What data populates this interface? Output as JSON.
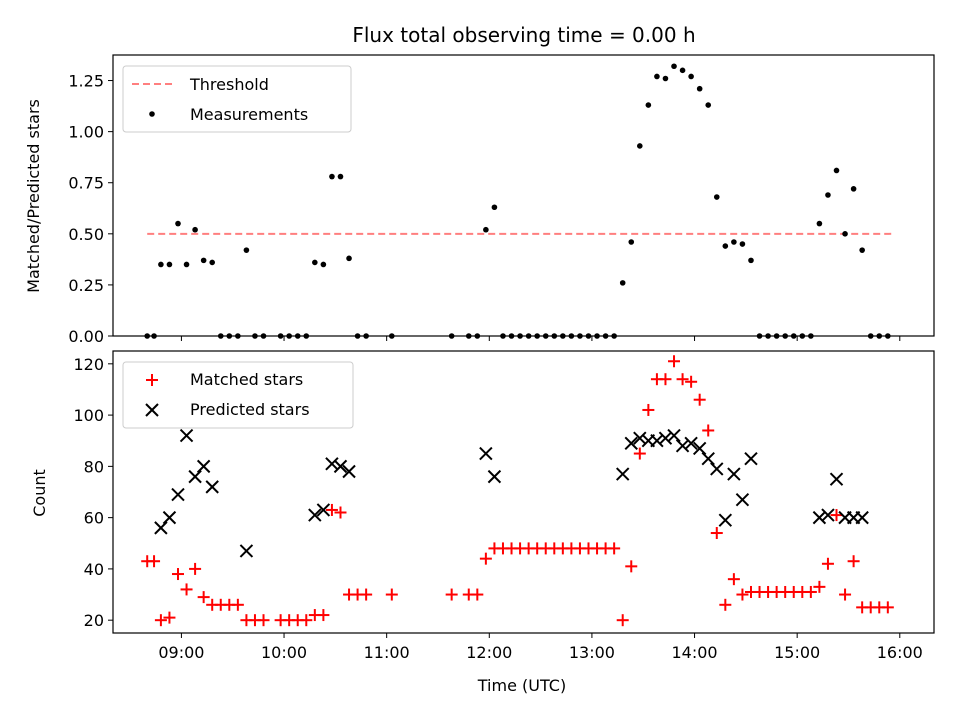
{
  "chart_data": [
    {
      "type": "scatter",
      "title": "Flux total observing time = 0.00 h",
      "xlabel": "",
      "ylabel": "Matched/Predicted stars",
      "xlim": [
        "08:20",
        "16:20"
      ],
      "ylim": [
        0,
        1.375
      ],
      "yticks": [
        "0.00",
        "0.25",
        "0.50",
        "0.75",
        "1.00",
        "1.25"
      ],
      "legend_position": "upper-left",
      "threshold": {
        "name": "Threshold",
        "value": 0.5,
        "x_start": "08:40",
        "x_end": "15:55",
        "color": "#ff7f7f"
      },
      "series": [
        {
          "name": "Measurements",
          "marker": "dot",
          "color": "#000000",
          "points": [
            [
              "08:40",
              0
            ],
            [
              "08:44",
              0
            ],
            [
              "08:48",
              0.35
            ],
            [
              "08:53",
              0.35
            ],
            [
              "08:58",
              0.55
            ],
            [
              "09:03",
              0.35
            ],
            [
              "09:08",
              0.52
            ],
            [
              "09:13",
              0.37
            ],
            [
              "09:18",
              0.36
            ],
            [
              "09:23",
              0
            ],
            [
              "09:28",
              0
            ],
            [
              "09:33",
              0
            ],
            [
              "09:38",
              0.42
            ],
            [
              "09:43",
              0
            ],
            [
              "09:48",
              0
            ],
            [
              "09:58",
              0
            ],
            [
              "10:03",
              0
            ],
            [
              "10:08",
              0
            ],
            [
              "10:13",
              0
            ],
            [
              "10:18",
              0.36
            ],
            [
              "10:23",
              0.35
            ],
            [
              "10:28",
              0.78
            ],
            [
              "10:33",
              0.78
            ],
            [
              "10:38",
              0.38
            ],
            [
              "10:43",
              0
            ],
            [
              "10:48",
              0
            ],
            [
              "11:03",
              0
            ],
            [
              "11:38",
              0
            ],
            [
              "11:48",
              0
            ],
            [
              "11:53",
              0
            ],
            [
              "11:58",
              0.52
            ],
            [
              "12:03",
              0.63
            ],
            [
              "12:08",
              0
            ],
            [
              "12:13",
              0
            ],
            [
              "12:18",
              0
            ],
            [
              "12:23",
              0
            ],
            [
              "12:28",
              0
            ],
            [
              "12:33",
              0
            ],
            [
              "12:38",
              0
            ],
            [
              "12:43",
              0
            ],
            [
              "12:48",
              0
            ],
            [
              "12:53",
              0
            ],
            [
              "12:58",
              0
            ],
            [
              "13:03",
              0
            ],
            [
              "13:08",
              0
            ],
            [
              "13:13",
              0
            ],
            [
              "13:18",
              0.26
            ],
            [
              "13:23",
              0.46
            ],
            [
              "13:28",
              0.93
            ],
            [
              "13:33",
              1.13
            ],
            [
              "13:38",
              1.27
            ],
            [
              "13:43",
              1.26
            ],
            [
              "13:48",
              1.32
            ],
            [
              "13:53",
              1.3
            ],
            [
              "13:58",
              1.27
            ],
            [
              "14:03",
              1.21
            ],
            [
              "14:08",
              1.13
            ],
            [
              "14:13",
              0.68
            ],
            [
              "14:18",
              0.44
            ],
            [
              "14:23",
              0.46
            ],
            [
              "14:28",
              0.45
            ],
            [
              "14:33",
              0.37
            ],
            [
              "14:38",
              0
            ],
            [
              "14:43",
              0
            ],
            [
              "14:48",
              0
            ],
            [
              "14:53",
              0
            ],
            [
              "14:58",
              0
            ],
            [
              "15:03",
              0
            ],
            [
              "15:08",
              0
            ],
            [
              "15:13",
              0.55
            ],
            [
              "15:18",
              0.69
            ],
            [
              "15:23",
              0.81
            ],
            [
              "15:28",
              0.5
            ],
            [
              "15:33",
              0.72
            ],
            [
              "15:38",
              0.42
            ],
            [
              "15:43",
              0
            ],
            [
              "15:48",
              0
            ],
            [
              "15:53",
              0
            ]
          ]
        }
      ]
    },
    {
      "type": "scatter",
      "title": "",
      "xlabel": "Time (UTC)",
      "ylabel": "Count",
      "xlim": [
        "08:20",
        "16:20"
      ],
      "ylim": [
        15,
        125
      ],
      "xticks": [
        "09:00",
        "10:00",
        "11:00",
        "12:00",
        "13:00",
        "14:00",
        "15:00",
        "16:00"
      ],
      "yticks": [
        "20",
        "40",
        "60",
        "80",
        "100",
        "120"
      ],
      "legend_position": "upper-left",
      "series": [
        {
          "name": "Matched stars",
          "marker": "plus",
          "color": "#ff0000",
          "points": [
            [
              "08:40",
              43
            ],
            [
              "08:44",
              43
            ],
            [
              "08:48",
              20
            ],
            [
              "08:53",
              21
            ],
            [
              "08:58",
              38
            ],
            [
              "09:03",
              32
            ],
            [
              "09:08",
              40
            ],
            [
              "09:13",
              29
            ],
            [
              "09:18",
              26
            ],
            [
              "09:23",
              26
            ],
            [
              "09:28",
              26
            ],
            [
              "09:33",
              26
            ],
            [
              "09:38",
              20
            ],
            [
              "09:43",
              20
            ],
            [
              "09:48",
              20
            ],
            [
              "09:58",
              20
            ],
            [
              "10:03",
              20
            ],
            [
              "10:08",
              20
            ],
            [
              "10:13",
              20
            ],
            [
              "10:18",
              22
            ],
            [
              "10:23",
              22
            ],
            [
              "10:28",
              63
            ],
            [
              "10:33",
              62
            ],
            [
              "10:38",
              30
            ],
            [
              "10:43",
              30
            ],
            [
              "10:48",
              30
            ],
            [
              "11:03",
              30
            ],
            [
              "11:38",
              30
            ],
            [
              "11:48",
              30
            ],
            [
              "11:53",
              30
            ],
            [
              "11:58",
              44
            ],
            [
              "12:03",
              48
            ],
            [
              "12:08",
              48
            ],
            [
              "12:13",
              48
            ],
            [
              "12:18",
              48
            ],
            [
              "12:23",
              48
            ],
            [
              "12:28",
              48
            ],
            [
              "12:33",
              48
            ],
            [
              "12:38",
              48
            ],
            [
              "12:43",
              48
            ],
            [
              "12:48",
              48
            ],
            [
              "12:53",
              48
            ],
            [
              "12:58",
              48
            ],
            [
              "13:03",
              48
            ],
            [
              "13:08",
              48
            ],
            [
              "13:13",
              48
            ],
            [
              "13:18",
              20
            ],
            [
              "13:23",
              41
            ],
            [
              "13:28",
              85
            ],
            [
              "13:33",
              102
            ],
            [
              "13:38",
              114
            ],
            [
              "13:43",
              114
            ],
            [
              "13:48",
              121
            ],
            [
              "13:53",
              114
            ],
            [
              "13:58",
              113
            ],
            [
              "14:03",
              106
            ],
            [
              "14:08",
              94
            ],
            [
              "14:13",
              54
            ],
            [
              "14:18",
              26
            ],
            [
              "14:23",
              36
            ],
            [
              "14:28",
              30
            ],
            [
              "14:33",
              31
            ],
            [
              "14:38",
              31
            ],
            [
              "14:43",
              31
            ],
            [
              "14:48",
              31
            ],
            [
              "14:53",
              31
            ],
            [
              "14:58",
              31
            ],
            [
              "15:03",
              31
            ],
            [
              "15:08",
              31
            ],
            [
              "15:13",
              33
            ],
            [
              "15:18",
              42
            ],
            [
              "15:23",
              61
            ],
            [
              "15:28",
              30
            ],
            [
              "15:33",
              43
            ],
            [
              "15:38",
              25
            ],
            [
              "15:43",
              25
            ],
            [
              "15:48",
              25
            ],
            [
              "15:53",
              25
            ]
          ]
        },
        {
          "name": "Predicted stars",
          "marker": "x",
          "color": "#000000",
          "points": [
            [
              "08:48",
              56
            ],
            [
              "08:53",
              60
            ],
            [
              "08:58",
              69
            ],
            [
              "09:03",
              92
            ],
            [
              "09:08",
              76
            ],
            [
              "09:13",
              80
            ],
            [
              "09:18",
              72
            ],
            [
              "09:38",
              47
            ],
            [
              "10:18",
              61
            ],
            [
              "10:23",
              63
            ],
            [
              "10:28",
              81
            ],
            [
              "10:33",
              80
            ],
            [
              "10:38",
              78
            ],
            [
              "11:58",
              85
            ],
            [
              "12:03",
              76
            ],
            [
              "13:18",
              77
            ],
            [
              "13:23",
              89
            ],
            [
              "13:28",
              91
            ],
            [
              "13:33",
              90
            ],
            [
              "13:38",
              90
            ],
            [
              "13:43",
              91
            ],
            [
              "13:48",
              92
            ],
            [
              "13:53",
              88
            ],
            [
              "13:58",
              89
            ],
            [
              "14:03",
              87
            ],
            [
              "14:08",
              83
            ],
            [
              "14:13",
              79
            ],
            [
              "14:18",
              59
            ],
            [
              "14:23",
              77
            ],
            [
              "14:28",
              67
            ],
            [
              "14:33",
              83
            ],
            [
              "15:13",
              60
            ],
            [
              "15:18",
              61
            ],
            [
              "15:23",
              75
            ],
            [
              "15:28",
              60
            ],
            [
              "15:33",
              60
            ],
            [
              "15:38",
              60
            ]
          ]
        }
      ]
    }
  ]
}
